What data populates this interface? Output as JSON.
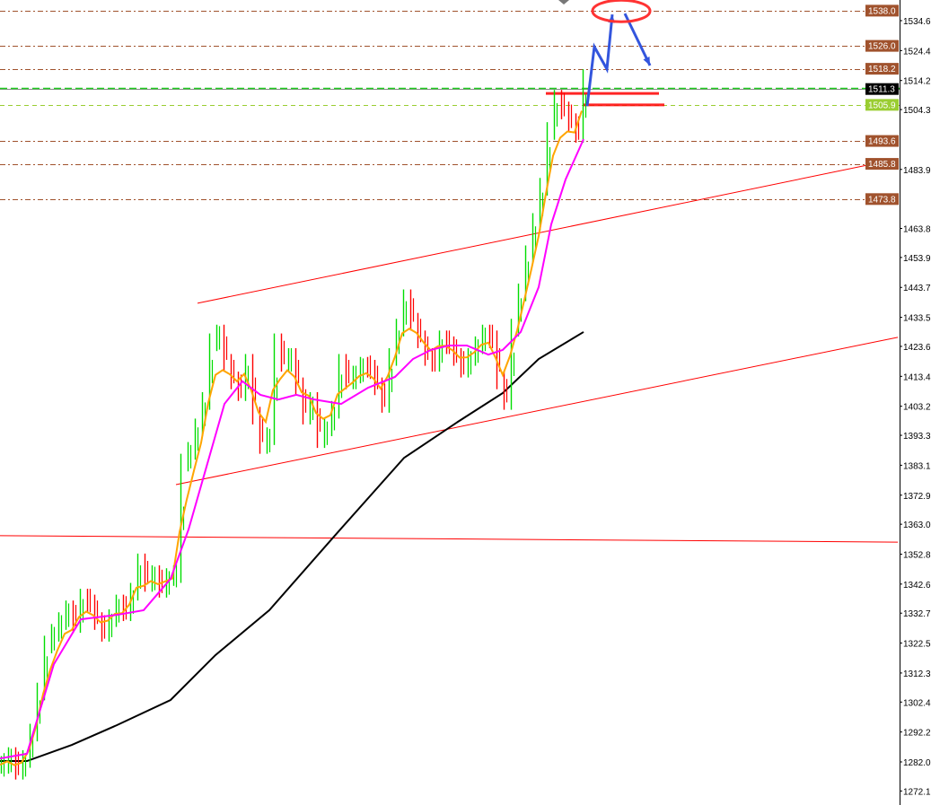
{
  "chart_data": {
    "type": "candlestick",
    "title": "",
    "xlabel": "",
    "ylabel": "",
    "ylim": [
      1268.0,
      1540.0
    ],
    "grid": false,
    "y_ticks": [
      "1534.6",
      "1524.4",
      "1514.2",
      "1504.3",
      "1483.9",
      "1463.8",
      "1453.9",
      "1443.7",
      "1433.5",
      "1423.6",
      "1413.4",
      "1403.2",
      "1393.3",
      "1383.1",
      "1372.9",
      "1363.0",
      "1352.8",
      "1342.6",
      "1332.7",
      "1322.5",
      "1312.3",
      "1302.4",
      "1292.2",
      "1282.0",
      "1272.1"
    ],
    "closes": [
      1281,
      1284,
      1279,
      1283,
      1292,
      1306,
      1322,
      1326,
      1330,
      1334,
      1329,
      1338,
      1336,
      1330,
      1326,
      1331,
      1336,
      1333,
      1340,
      1350,
      1343,
      1346,
      1341,
      1345,
      1346,
      1384,
      1388,
      1396,
      1405,
      1425,
      1428,
      1418,
      1412,
      1408,
      1418,
      1400,
      1390,
      1393,
      1425,
      1418,
      1420,
      1410,
      1400,
      1405,
      1392,
      1396,
      1402,
      1418,
      1412,
      1414,
      1417,
      1416,
      1410,
      1404,
      1420,
      1430,
      1440,
      1432,
      1426,
      1420,
      1418,
      1426,
      1424,
      1420,
      1416,
      1420,
      1424,
      1428,
      1426,
      1412,
      1405,
      1430,
      1442,
      1455,
      1466,
      1478,
      1497,
      1508,
      1504,
      1500,
      1496,
      1515
    ],
    "colors": {
      "up": "#00dd00",
      "down": "#ff0000",
      "fast_ma": "#ffa500",
      "mid_ma": "#ff00ff",
      "slow_ma": "#000000",
      "trendline": "#ff0000",
      "arrow": "#3355dd",
      "level": "#a0522d"
    },
    "slow_ma": [
      [
        0,
        1282.3
      ],
      [
        15,
        1282.3
      ],
      [
        40,
        1287.8
      ],
      [
        65,
        1294.5
      ],
      [
        95,
        1303.1
      ],
      [
        120,
        1318.4
      ],
      [
        150,
        1333.7
      ],
      [
        185,
        1358.1
      ],
      [
        225,
        1385.6
      ],
      [
        255,
        1397.9
      ],
      [
        280,
        1407.7
      ],
      [
        300,
        1419.3
      ],
      [
        325,
        1428.5
      ]
    ],
    "mid_ma": [
      [
        0,
        1283.2
      ],
      [
        15,
        1284.8
      ],
      [
        30,
        1315.3
      ],
      [
        45,
        1330.6
      ],
      [
        65,
        1332.1
      ],
      [
        80,
        1333.7
      ],
      [
        95,
        1344.4
      ],
      [
        105,
        1361.2
      ],
      [
        115,
        1382.6
      ],
      [
        125,
        1404.0
      ],
      [
        135,
        1411.7
      ],
      [
        145,
        1407.1
      ],
      [
        155,
        1405.5
      ],
      [
        165,
        1407.1
      ],
      [
        175,
        1405.5
      ],
      [
        190,
        1404.0
      ],
      [
        205,
        1409.5
      ],
      [
        220,
        1413.2
      ],
      [
        230,
        1419.3
      ],
      [
        240,
        1422.4
      ],
      [
        250,
        1423.9
      ],
      [
        260,
        1423.9
      ],
      [
        272,
        1420.8
      ],
      [
        280,
        1422.4
      ],
      [
        290,
        1428.5
      ],
      [
        300,
        1443.8
      ],
      [
        307,
        1465.2
      ],
      [
        315,
        1480.5
      ],
      [
        325,
        1494.2
      ]
    ],
    "trendlines": [
      {
        "from": [
          110,
          1438.3
        ],
        "to": [
          500,
          1487.5
        ]
      },
      {
        "from": [
          98,
          1376.5
        ],
        "to": [
          500,
          1426.7
        ]
      },
      {
        "from": [
          0,
          1359.1
        ],
        "to": [
          500,
          1356.9
        ]
      },
      {
        "from": [
          304,
          1509.8
        ],
        "to": [
          367,
          1509.8
        ]
      },
      {
        "from": [
          325,
          1505.9
        ],
        "to": [
          370,
          1505.9
        ]
      }
    ],
    "arrows": [
      [
        [
          327,
          1505.5
        ],
        [
          331,
          1525.7
        ],
        [
          338,
          1518.1
        ],
        [
          341,
          1536.7
        ]
      ],
      [
        [
          348,
          1537.0
        ],
        [
          362,
          1519.3
        ]
      ]
    ],
    "target_ellipse": {
      "center": [
        346,
        1537.9
      ]
    },
    "levels": [
      {
        "price": 1538.0,
        "label": "1538.0",
        "style": "level"
      },
      {
        "price": 1526.0,
        "label": "1526.0",
        "style": "level"
      },
      {
        "price": 1518.2,
        "label": "1518.2",
        "style": "level"
      },
      {
        "price": 1511.3,
        "label": "1511.3",
        "style": "bid"
      },
      {
        "price": 1505.9,
        "label": "1505.9",
        "style": "lime"
      },
      {
        "price": 1493.6,
        "label": "1493.6",
        "style": "level"
      },
      {
        "price": 1485.8,
        "label": "1485.8",
        "style": "level"
      },
      {
        "price": 1473.8,
        "label": "1473.8",
        "style": "level"
      }
    ]
  }
}
